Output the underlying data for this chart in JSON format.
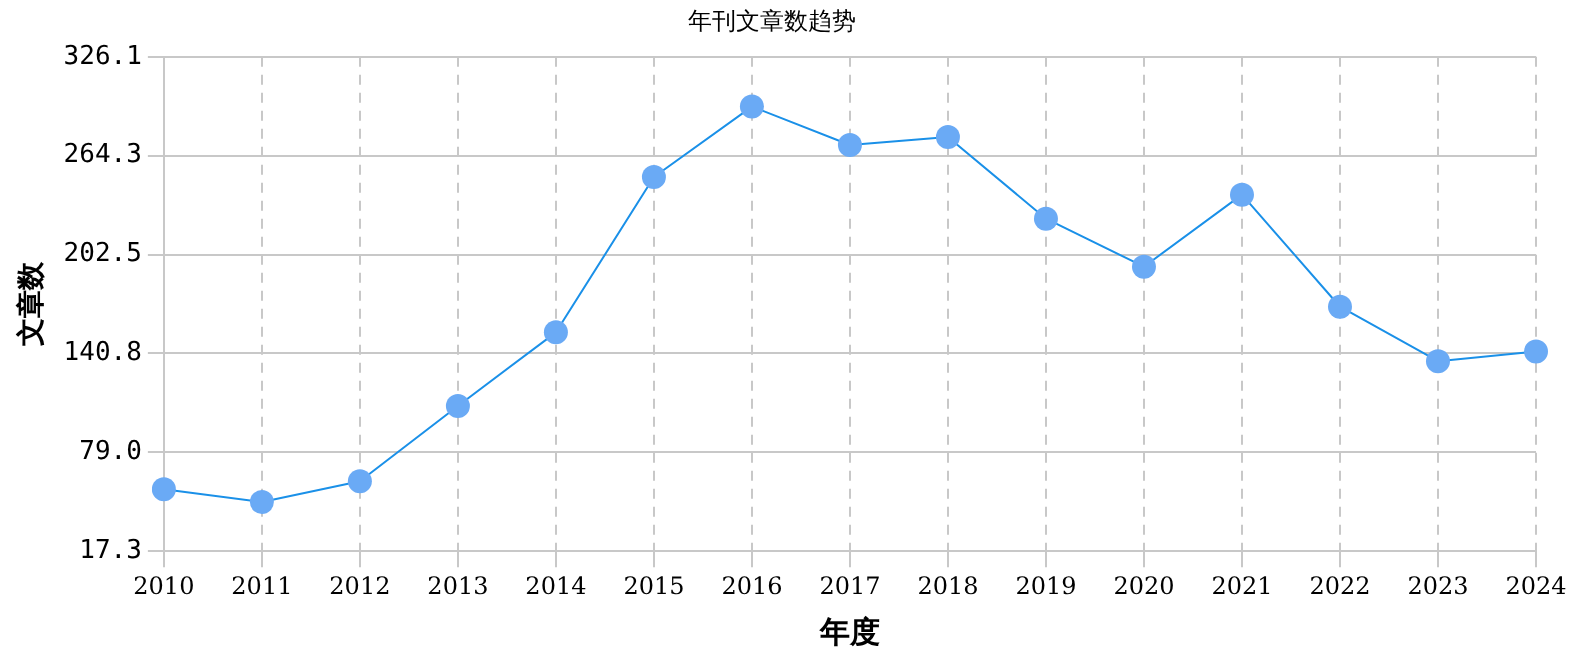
{
  "chart_data": {
    "type": "line",
    "title": "年刊文章数趋势",
    "xlabel": "年度",
    "ylabel": "文章数",
    "categories": [
      "2010",
      "2011",
      "2012",
      "2013",
      "2014",
      "2015",
      "2016",
      "2017",
      "2018",
      "2019",
      "2020",
      "2021",
      "2022",
      "2023",
      "2024"
    ],
    "series": [
      {
        "color": "#1a90e8",
        "values": [
          56,
          48,
          61,
          108,
          154,
          251,
          295,
          271,
          276,
          225,
          195,
          240,
          170,
          136,
          142
        ]
      }
    ],
    "ylim": [
      17.3,
      326.1
    ],
    "yticks": [
      {
        "value": 17.3,
        "label": "17.3"
      },
      {
        "value": 79.0,
        "label": "79.0"
      },
      {
        "value": 140.8,
        "label": "140.8"
      },
      {
        "value": 202.5,
        "label": "202.5"
      },
      {
        "value": 264.3,
        "label": "264.3"
      },
      {
        "value": 326.1,
        "label": "326.1"
      }
    ],
    "grid": true,
    "legend": false,
    "marker": "circle",
    "line_style": "solid"
  }
}
